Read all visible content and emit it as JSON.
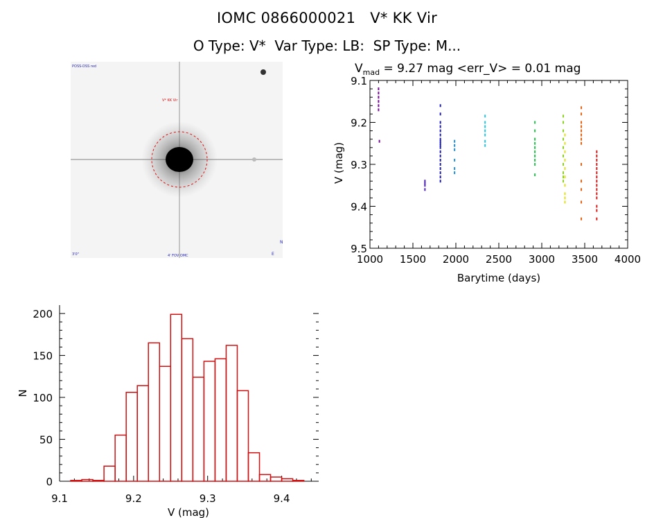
{
  "title": {
    "object_id": "IOMC 0866000021",
    "object_name": "V* KK Vir",
    "subtitle": "O Type: V*  Var Type: LB:  SP Type: M..."
  },
  "image_panel": {
    "label_top_left": "POSS-DSS red",
    "label_target": "V* KK Vir",
    "label_bottom_left": "3'0\"",
    "label_bottom_center": "4' FOV OMC",
    "label_bottom_right": "E",
    "label_right_north": "N"
  },
  "chart_data": [
    {
      "type": "scatter",
      "title_prefix": "V",
      "title_subscript": "mad",
      "title_rest": " = 9.27 mag <err_V> = 0.01 mag",
      "xlabel": "Barytime (days)",
      "ylabel": "V (mag)",
      "xlim": [
        1000,
        4000
      ],
      "ylim": [
        9.5,
        9.1
      ],
      "y_inverted": true,
      "xticks": [
        1000,
        1500,
        2000,
        2500,
        3000,
        3500,
        4000
      ],
      "yticks": [
        9.1,
        9.2,
        9.3,
        9.4,
        9.5
      ],
      "series": [
        {
          "color": "#7a0a99",
          "x": [
            1100,
            1100,
            1100,
            1100,
            1100,
            1100,
            1110
          ],
          "y": [
            9.12,
            9.13,
            9.14,
            9.15,
            9.16,
            9.17,
            9.245
          ]
        },
        {
          "color": "#4b22b5",
          "x": [
            1640,
            1640,
            1640,
            1640
          ],
          "y": [
            9.34,
            9.345,
            9.35,
            9.36
          ]
        },
        {
          "color": "#1c1cb5",
          "x": [
            1820,
            1820,
            1820,
            1820,
            1820,
            1820,
            1820,
            1820,
            1820,
            1820,
            1820,
            1820,
            1820,
            1820,
            1820,
            1820,
            1820,
            1820,
            1820
          ],
          "y": [
            9.16,
            9.18,
            9.2,
            9.21,
            9.22,
            9.23,
            9.24,
            9.25,
            9.26,
            9.27,
            9.28,
            9.29,
            9.3,
            9.31,
            9.32,
            9.33,
            9.34,
            9.245,
            9.255
          ]
        },
        {
          "color": "#1a8fe0",
          "x": [
            1985,
            1985,
            1985,
            1985,
            1985,
            1985
          ],
          "y": [
            9.245,
            9.255,
            9.265,
            9.29,
            9.31,
            9.32
          ]
        },
        {
          "color": "#22c8e8",
          "x": [
            2340,
            2340,
            2340,
            2340,
            2340,
            2340,
            2340
          ],
          "y": [
            9.185,
            9.2,
            9.21,
            9.22,
            9.23,
            9.245,
            9.255
          ]
        },
        {
          "color": "#20c84a",
          "x": [
            2920,
            2920,
            2920,
            2920,
            2920,
            2920,
            2920,
            2920,
            2920,
            2920
          ],
          "y": [
            9.2,
            9.22,
            9.24,
            9.25,
            9.26,
            9.27,
            9.28,
            9.29,
            9.3,
            9.325
          ]
        },
        {
          "color": "#8ad41e",
          "x": [
            3250,
            3250,
            3250,
            3250,
            3250,
            3250,
            3250,
            3250,
            3250,
            3250
          ],
          "y": [
            9.185,
            9.2,
            9.22,
            9.24,
            9.26,
            9.28,
            9.3,
            9.32,
            9.33,
            9.34
          ]
        },
        {
          "color": "#e0e020",
          "x": [
            3270,
            3270,
            3270,
            3270,
            3270,
            3270,
            3270,
            3270,
            3270,
            3270
          ],
          "y": [
            9.23,
            9.25,
            9.27,
            9.29,
            9.31,
            9.33,
            9.35,
            9.37,
            9.38,
            9.39
          ]
        },
        {
          "color": "#e86010",
          "x": [
            3460,
            3460,
            3460,
            3460,
            3460,
            3460,
            3460,
            3460,
            3460,
            3460,
            3460,
            3460,
            3460
          ],
          "y": [
            9.165,
            9.18,
            9.2,
            9.21,
            9.22,
            9.23,
            9.24,
            9.25,
            9.3,
            9.34,
            9.36,
            9.39,
            9.43
          ]
        },
        {
          "color": "#d81a1a",
          "x": [
            3640,
            3640,
            3640,
            3640,
            3640,
            3640,
            3640,
            3640,
            3640,
            3640,
            3640,
            3640,
            3640,
            3640,
            3640
          ],
          "y": [
            9.27,
            9.28,
            9.29,
            9.3,
            9.31,
            9.32,
            9.33,
            9.34,
            9.35,
            9.36,
            9.37,
            9.38,
            9.4,
            9.41,
            9.43
          ]
        }
      ]
    },
    {
      "type": "bar",
      "subtype": "histogram",
      "xlabel": "V (mag)",
      "ylabel": "N",
      "xlim": [
        9.1,
        9.45
      ],
      "ylim": [
        0,
        210
      ],
      "xticks": [
        9.1,
        9.2,
        9.3,
        9.4
      ],
      "yticks": [
        0,
        50,
        100,
        150,
        200
      ],
      "bar_color": "#d01010",
      "bin_edges": [
        9.115,
        9.13,
        9.145,
        9.16,
        9.175,
        9.19,
        9.205,
        9.22,
        9.235,
        9.25,
        9.265,
        9.28,
        9.295,
        9.31,
        9.325,
        9.34,
        9.355,
        9.37,
        9.385,
        9.4,
        9.415,
        9.43
      ],
      "values": [
        1,
        2,
        1,
        18,
        55,
        106,
        114,
        165,
        137,
        199,
        170,
        124,
        143,
        146,
        162,
        108,
        34,
        8,
        5,
        3,
        1
      ]
    }
  ]
}
